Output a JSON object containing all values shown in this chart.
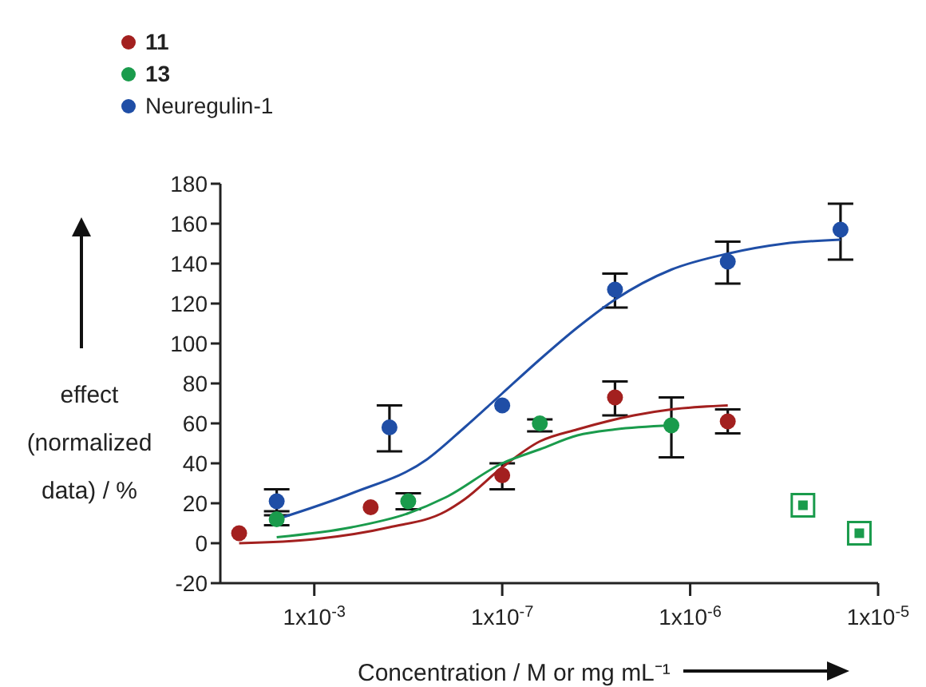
{
  "chart_data": {
    "type": "scatter",
    "xlabel": "Concentration / M or mg mL⁻¹",
    "ylabel": "effect (normalized data) / %",
    "categories": [
      null,
      null,
      null,
      null,
      null,
      "1x10$^{-3}$",
      null,
      null,
      null,
      null,
      null,
      null,
      null,
      null,
      null,
      "1x10$^{-7}$",
      null,
      null,
      null,
      null,
      null,
      null,
      null,
      null,
      null,
      "1x10$^{-6}$",
      null,
      null,
      null,
      null,
      null,
      null,
      null,
      null,
      null,
      "1x10$^{-5}$"
    ],
    "ylim": [
      -20,
      180
    ],
    "yticks": [
      -20,
      0,
      20,
      40,
      60,
      80,
      100,
      120,
      140,
      160,
      180
    ],
    "legend": "top left",
    "marker": "circle",
    "series": [
      {
        "name": "11",
        "color": "#a3201f",
        "values": [
          null,
          5,
          null,
          null,
          null,
          null,
          null,
          null,
          18,
          null,
          null,
          null,
          null,
          null,
          null,
          34,
          null,
          null,
          null,
          null,
          null,
          73,
          null,
          null,
          null,
          null,
          null,
          61,
          null,
          null,
          null,
          null,
          null,
          null,
          null,
          null
        ],
        "errors": [
          null,
          null,
          null,
          null,
          null,
          null,
          null,
          null,
          null,
          null,
          null,
          null,
          null,
          null,
          null,
          [
            27,
            40
          ],
          null,
          null,
          null,
          null,
          null,
          [
            64,
            81
          ],
          null,
          null,
          null,
          null,
          null,
          [
            55,
            67
          ],
          null,
          null,
          null,
          null,
          null,
          null,
          null,
          null
        ]
      },
      {
        "name": "13",
        "color": "#1a9b4c",
        "values": [
          null,
          null,
          null,
          12,
          null,
          null,
          null,
          null,
          null,
          null,
          21,
          null,
          null,
          null,
          null,
          null,
          null,
          60,
          null,
          null,
          null,
          null,
          null,
          null,
          59,
          null,
          null,
          null,
          null,
          null,
          null,
          null,
          null,
          null,
          null,
          null
        ],
        "errors": [
          null,
          null,
          null,
          [
            9,
            16
          ],
          null,
          null,
          null,
          null,
          null,
          null,
          [
            17,
            25
          ],
          null,
          null,
          null,
          null,
          null,
          null,
          [
            56,
            62
          ],
          null,
          null,
          null,
          null,
          null,
          null,
          [
            43,
            73
          ],
          null,
          null,
          null,
          null,
          null,
          null,
          null,
          null,
          null,
          null,
          null
        ]
      },
      {
        "name": "Neuregulin-1",
        "color": "#1f4ea6",
        "values": [
          null,
          null,
          null,
          21,
          null,
          null,
          null,
          null,
          null,
          58,
          null,
          null,
          null,
          null,
          null,
          69,
          null,
          null,
          null,
          null,
          null,
          127,
          null,
          null,
          null,
          null,
          null,
          141,
          null,
          null,
          null,
          null,
          null,
          157,
          null,
          null
        ],
        "errors": [
          null,
          null,
          null,
          [
            14,
            27
          ],
          null,
          null,
          null,
          null,
          null,
          [
            46,
            69
          ],
          null,
          null,
          null,
          null,
          null,
          null,
          null,
          null,
          null,
          null,
          null,
          [
            118,
            135
          ],
          null,
          null,
          null,
          null,
          null,
          [
            130,
            151
          ],
          null,
          null,
          null,
          null,
          null,
          [
            142,
            170
          ],
          null,
          null
        ]
      },
      {
        "type": "line",
        "marker": "none",
        "color": "#a3201f",
        "values": [
          null,
          0,
          null,
          null,
          null,
          2,
          null,
          null,
          null,
          8,
          null,
          null,
          16,
          22,
          null,
          38,
          null,
          51,
          null,
          57,
          null,
          null,
          64,
          null,
          67,
          null,
          null,
          69,
          null,
          null,
          null,
          null,
          null,
          null,
          null,
          null
        ]
      },
      {
        "type": "line",
        "marker": "none",
        "color": "#1a9b4c",
        "values": [
          null,
          null,
          null,
          3,
          null,
          null,
          null,
          8,
          null,
          null,
          15,
          null,
          23,
          null,
          null,
          40,
          null,
          47,
          null,
          54,
          null,
          57,
          null,
          null,
          59,
          null,
          null,
          null,
          null,
          null,
          null,
          null,
          null,
          null,
          null,
          null
        ]
      },
      {
        "type": "line",
        "marker": "none",
        "color": "#1f4ea6",
        "values": [
          null,
          null,
          null,
          12,
          null,
          null,
          null,
          25,
          null,
          null,
          null,
          42,
          null,
          58,
          null,
          75,
          null,
          92,
          null,
          108,
          null,
          122,
          null,
          null,
          137,
          null,
          null,
          145,
          null,
          null,
          150,
          null,
          null,
          152,
          null,
          null
        ]
      },
      {
        "color": "#1a9b4c",
        "marker": "square",
        "values": [
          null,
          null,
          null,
          null,
          null,
          null,
          null,
          null,
          null,
          null,
          null,
          null,
          null,
          null,
          null,
          null,
          null,
          null,
          null,
          null,
          null,
          null,
          null,
          null,
          null,
          null,
          null,
          null,
          null,
          null,
          null,
          19,
          null,
          null,
          5,
          null
        ]
      }
    ]
  }
}
